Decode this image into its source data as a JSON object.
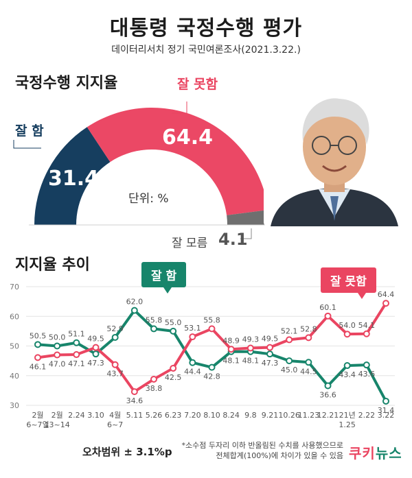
{
  "header": {
    "title": "대통령 국정수행 평가",
    "subtitle": "데이터리서치 정기 국민여론조사(2021.3.22.)"
  },
  "approval": {
    "section_title": "국정수행 지지율",
    "good_label": "잘 함",
    "bad_label": "잘 못함",
    "unknown_label": "잘 모름",
    "good_value": "31.4",
    "bad_value": "64.4",
    "unknown_value": "4.1",
    "unit": "단위: %"
  },
  "trend": {
    "section_title": "지지율 추이",
    "good_bubble": "잘 함",
    "bad_bubble": "잘 못함"
  },
  "footer": {
    "margin_of_error": "오차범위 ± 3.1%p",
    "note_line1": "*소수점 두자리 이하 반올림된 수치를 사용했으므로",
    "note_line2": "전체합계(100%)에 차이가 있을 수 있음",
    "logo_part1": "쿠키",
    "logo_part2": "뉴스"
  },
  "colors": {
    "good": "#17856b",
    "bad": "#ea4561",
    "donut_good": "#163e5f",
    "donut_bad": "#eb4865",
    "donut_unknown": "#6f6f6f"
  },
  "chart_data": [
    {
      "type": "pie",
      "title": "국정수행 지지율",
      "categories": [
        "잘 함",
        "잘 못함",
        "잘 모름"
      ],
      "values": [
        31.4,
        64.4,
        4.1
      ],
      "unit": "%"
    },
    {
      "type": "line",
      "title": "지지율 추이",
      "x": [
        "2월 6~7일",
        "2월 13~14",
        "2.24",
        "3.10",
        "4월 6~7",
        "5.11",
        "5.26",
        "6.23",
        "7.20",
        "8.10",
        "8.24",
        "9.8",
        "9.21",
        "10.26",
        "11.23",
        "12.21",
        "21년 1.25",
        "2.22",
        "3.22"
      ],
      "series": [
        {
          "name": "잘 함",
          "values": [
            50.5,
            50.0,
            51.1,
            47.3,
            52.9,
            62.0,
            55.8,
            55.0,
            44.4,
            42.8,
            48.1,
            48.1,
            47.3,
            45.0,
            44.5,
            36.6,
            43.4,
            43.6,
            31.4
          ]
        },
        {
          "name": "잘 못함",
          "values": [
            46.1,
            47.0,
            47.1,
            49.5,
            43.7,
            34.6,
            38.8,
            42.5,
            53.1,
            55.8,
            48.9,
            49.3,
            49.5,
            52.1,
            52.8,
            60.1,
            54.0,
            54.1,
            64.4
          ]
        }
      ],
      "ylim": [
        30,
        70
      ],
      "yticks": [
        30,
        40,
        50,
        60,
        70
      ],
      "grid": true
    }
  ]
}
